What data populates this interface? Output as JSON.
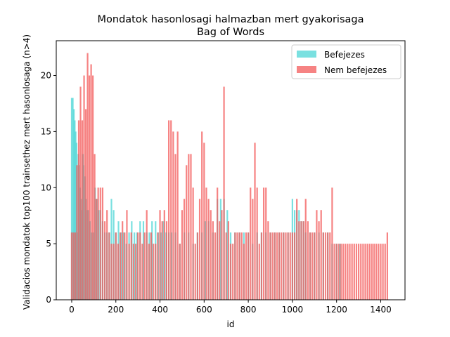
{
  "chart_data": {
    "type": "bar",
    "title": "Mondatok hasonlosagi halmazban mert gyakorisaga",
    "subtitle": "Bag of Words",
    "xlabel": "id",
    "ylabel": "Validacios mondatok top100 trainsethez mert hasonlosaga (n>4)",
    "xlim": [
      -70,
      1510
    ],
    "ylim": [
      0,
      23.1
    ],
    "xticks": [
      0,
      200,
      400,
      600,
      800,
      1000,
      1200,
      1400
    ],
    "yticks": [
      0,
      5,
      10,
      15,
      20
    ],
    "legend_position": "top-right",
    "series": [
      {
        "name": "Befejezes",
        "color": "#4ed5d5",
        "x": [
          0,
          5,
          10,
          14,
          18,
          22,
          26,
          30,
          34,
          38,
          42,
          46,
          50,
          55,
          60,
          65,
          70,
          76,
          82,
          90,
          98,
          106,
          114,
          122,
          130,
          140,
          150,
          160,
          170,
          180,
          190,
          200,
          212,
          224,
          236,
          248,
          260,
          272,
          284,
          296,
          310,
          325,
          340,
          352,
          364,
          380,
          392,
          404,
          416,
          428,
          440,
          452,
          470,
          490,
          510,
          530,
          550,
          570,
          590,
          605,
          620,
          640,
          660,
          675,
          690,
          705,
          720,
          740,
          760,
          780,
          800,
          820,
          840,
          860,
          880,
          900,
          920,
          940,
          960,
          980,
          1000,
          1010,
          1020,
          1030,
          1040,
          1050,
          1060,
          1080,
          1100,
          1120,
          1140,
          1160,
          1180,
          1200,
          1215
        ],
        "values": [
          18,
          18,
          17,
          16,
          15,
          14,
          6,
          13,
          12,
          10,
          9,
          8,
          13,
          12,
          11,
          9,
          8,
          8,
          7,
          6,
          6,
          10,
          9,
          8,
          8,
          7,
          6,
          6,
          6,
          9,
          8,
          6,
          7,
          6,
          6,
          5,
          6,
          7,
          6,
          6,
          7,
          7,
          6,
          6,
          7,
          7,
          6,
          6,
          7,
          6,
          6,
          6,
          6,
          5,
          6,
          6,
          5,
          6,
          6,
          7,
          7,
          6,
          9,
          9,
          9,
          8,
          6,
          6,
          6,
          6,
          6,
          5,
          6,
          6,
          6,
          6,
          6,
          6,
          6,
          6,
          9,
          8,
          8,
          8,
          7,
          7,
          6,
          6,
          6,
          6,
          6,
          6,
          5,
          5,
          5
        ]
      },
      {
        "name": "Nem befejezes",
        "color": "#f35a5a",
        "x": [
          0,
          8,
          16,
          24,
          32,
          40,
          48,
          56,
          64,
          72,
          80,
          88,
          96,
          104,
          112,
          120,
          130,
          140,
          150,
          160,
          170,
          180,
          190,
          200,
          210,
          220,
          230,
          240,
          250,
          260,
          270,
          280,
          290,
          300,
          310,
          320,
          330,
          340,
          350,
          360,
          370,
          380,
          390,
          400,
          410,
          420,
          430,
          440,
          450,
          460,
          470,
          480,
          490,
          500,
          510,
          520,
          530,
          540,
          550,
          560,
          570,
          580,
          590,
          600,
          610,
          620,
          630,
          640,
          650,
          660,
          670,
          680,
          690,
          700,
          710,
          720,
          730,
          740,
          750,
          760,
          770,
          780,
          790,
          800,
          810,
          820,
          830,
          840,
          850,
          860,
          870,
          880,
          890,
          900,
          910,
          920,
          930,
          940,
          950,
          960,
          970,
          980,
          990,
          1000,
          1010,
          1020,
          1030,
          1040,
          1050,
          1060,
          1070,
          1080,
          1090,
          1100,
          1110,
          1120,
          1130,
          1140,
          1150,
          1160,
          1170,
          1180,
          1190,
          1200,
          1210,
          1220,
          1230,
          1240,
          1250,
          1260,
          1270,
          1280,
          1290,
          1300,
          1310,
          1320,
          1330,
          1340,
          1350,
          1360,
          1370,
          1380,
          1390,
          1400,
          1410,
          1420,
          1430
        ],
        "values": [
          6,
          6,
          6,
          12,
          16,
          19,
          16,
          20,
          17,
          22,
          20,
          21,
          20,
          13,
          9,
          10,
          10,
          10,
          7,
          8,
          6,
          5,
          5,
          6,
          5,
          6,
          7,
          6,
          8,
          5,
          6,
          5,
          5,
          6,
          6,
          5,
          6,
          8,
          5,
          6,
          5,
          5,
          6,
          8,
          7,
          8,
          7,
          16,
          16,
          15,
          13,
          15,
          5,
          8,
          9,
          12,
          13,
          13,
          10,
          5,
          6,
          9,
          15,
          14,
          10,
          9,
          8,
          7,
          6,
          10,
          7,
          8,
          19,
          6,
          7,
          5,
          5,
          6,
          6,
          6,
          6,
          5,
          6,
          6,
          10,
          9,
          14,
          10,
          5,
          6,
          10,
          10,
          7,
          6,
          6,
          6,
          6,
          6,
          6,
          6,
          6,
          6,
          6,
          6,
          6,
          9,
          7,
          7,
          7,
          9,
          7,
          6,
          6,
          6,
          8,
          7,
          8,
          6,
          6,
          6,
          6,
          10,
          5,
          5,
          5,
          5,
          5,
          5,
          5,
          5,
          5,
          5,
          5,
          5,
          5,
          5,
          5,
          5,
          5,
          5,
          5,
          5,
          5,
          5,
          5,
          5,
          6
        ]
      }
    ]
  }
}
